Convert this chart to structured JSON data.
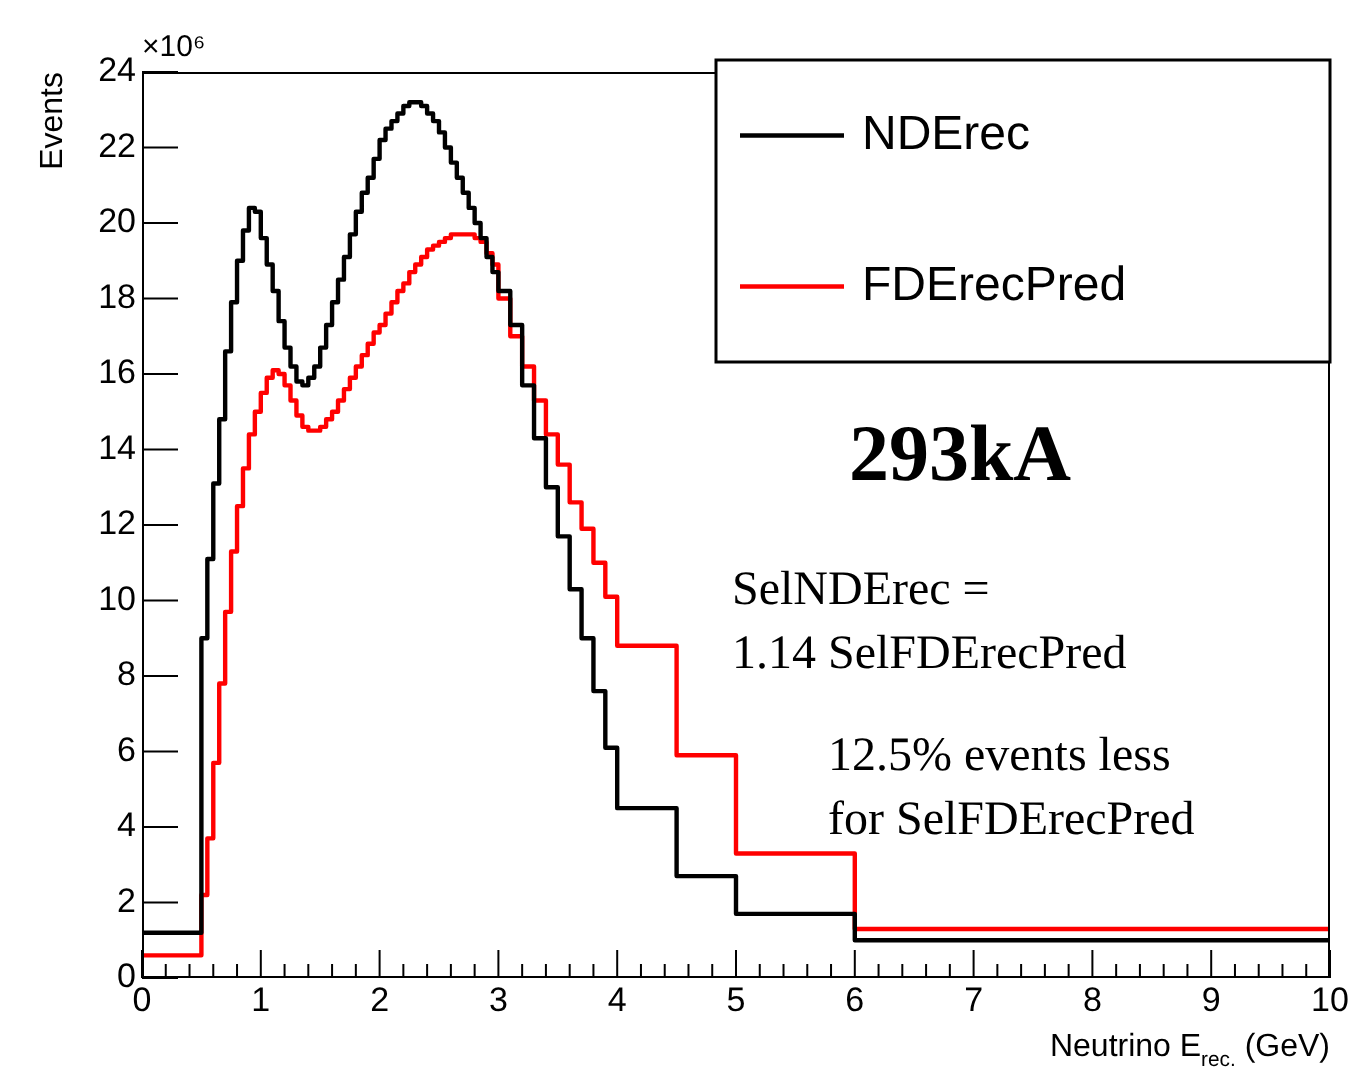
{
  "chart_data": {
    "type": "histogram",
    "xlabel": "Neutrino E$_{rec.}$ (GeV)",
    "ylabel": "Events",
    "bins": [
      0,
      0.5,
      0.55,
      0.6,
      0.65,
      0.7,
      0.75,
      0.8,
      0.85,
      0.9,
      0.95,
      1.0,
      1.05,
      1.1,
      1.15,
      1.2,
      1.25,
      1.3,
      1.35,
      1.4,
      1.45,
      1.5,
      1.55,
      1.6,
      1.65,
      1.7,
      1.75,
      1.8,
      1.85,
      1.9,
      1.95,
      2.0,
      2.05,
      2.1,
      2.15,
      2.2,
      2.25,
      2.3,
      2.35,
      2.4,
      2.45,
      2.5,
      2.55,
      2.6,
      2.65,
      2.7,
      2.75,
      2.8,
      2.85,
      2.9,
      2.95,
      3.0,
      3.1,
      3.2,
      3.3,
      3.4,
      3.5,
      3.6,
      3.7,
      3.8,
      3.9,
      4.0,
      4.5,
      5,
      6,
      10
    ],
    "series": [
      {
        "name": "NDErec",
        "color": "#000000",
        "values": [
          1.2,
          9.0,
          11.1,
          13.1,
          14.8,
          16.6,
          17.9,
          19.0,
          19.8,
          20.4,
          20.3,
          19.6,
          18.9,
          18.2,
          17.4,
          16.7,
          16.2,
          15.8,
          15.7,
          15.9,
          16.2,
          16.7,
          17.3,
          17.9,
          18.5,
          19.1,
          19.7,
          20.3,
          20.8,
          21.2,
          21.7,
          22.2,
          22.5,
          22.7,
          22.9,
          23.1,
          23.2,
          23.2,
          23.1,
          22.9,
          22.7,
          22.4,
          22.0,
          21.6,
          21.2,
          20.8,
          20.4,
          20.0,
          19.6,
          19.1,
          18.7,
          18.2,
          17.3,
          15.7,
          14.3,
          13.0,
          11.7,
          10.3,
          9.0,
          7.6,
          6.1,
          4.5,
          2.7,
          1.7,
          1.0
        ]
      },
      {
        "name": "FDErecPred",
        "color": "#ff0000",
        "values": [
          0.6,
          2.2,
          3.7,
          5.7,
          7.8,
          9.7,
          11.3,
          12.5,
          13.5,
          14.4,
          15.0,
          15.5,
          15.9,
          16.1,
          16.0,
          15.7,
          15.3,
          14.9,
          14.6,
          14.5,
          14.5,
          14.6,
          14.8,
          15.0,
          15.3,
          15.6,
          15.9,
          16.2,
          16.5,
          16.8,
          17.1,
          17.3,
          17.6,
          17.9,
          18.2,
          18.4,
          18.7,
          18.9,
          19.1,
          19.3,
          19.4,
          19.5,
          19.6,
          19.7,
          19.7,
          19.7,
          19.7,
          19.6,
          19.5,
          19.2,
          18.9,
          18.0,
          17.0,
          16.2,
          15.3,
          14.4,
          13.6,
          12.6,
          11.9,
          11.0,
          10.1,
          8.8,
          5.9,
          3.3,
          1.3
        ]
      }
    ],
    "xlim": [
      0,
      10
    ],
    "xticks": [
      0,
      1,
      2,
      3,
      4,
      5,
      6,
      7,
      8,
      9,
      10
    ],
    "ylim": [
      0,
      24
    ],
    "yticks": [
      0,
      2,
      4,
      6,
      8,
      10,
      12,
      14,
      16,
      18,
      20,
      22,
      24
    ],
    "grid": false,
    "legend": "top right",
    "annotations": [
      "×10⁶",
      "293kA",
      "SelNDErec =\n1.14 SelFDErecPred",
      "12.5% events less\nfor SelFDErecPred"
    ]
  }
}
